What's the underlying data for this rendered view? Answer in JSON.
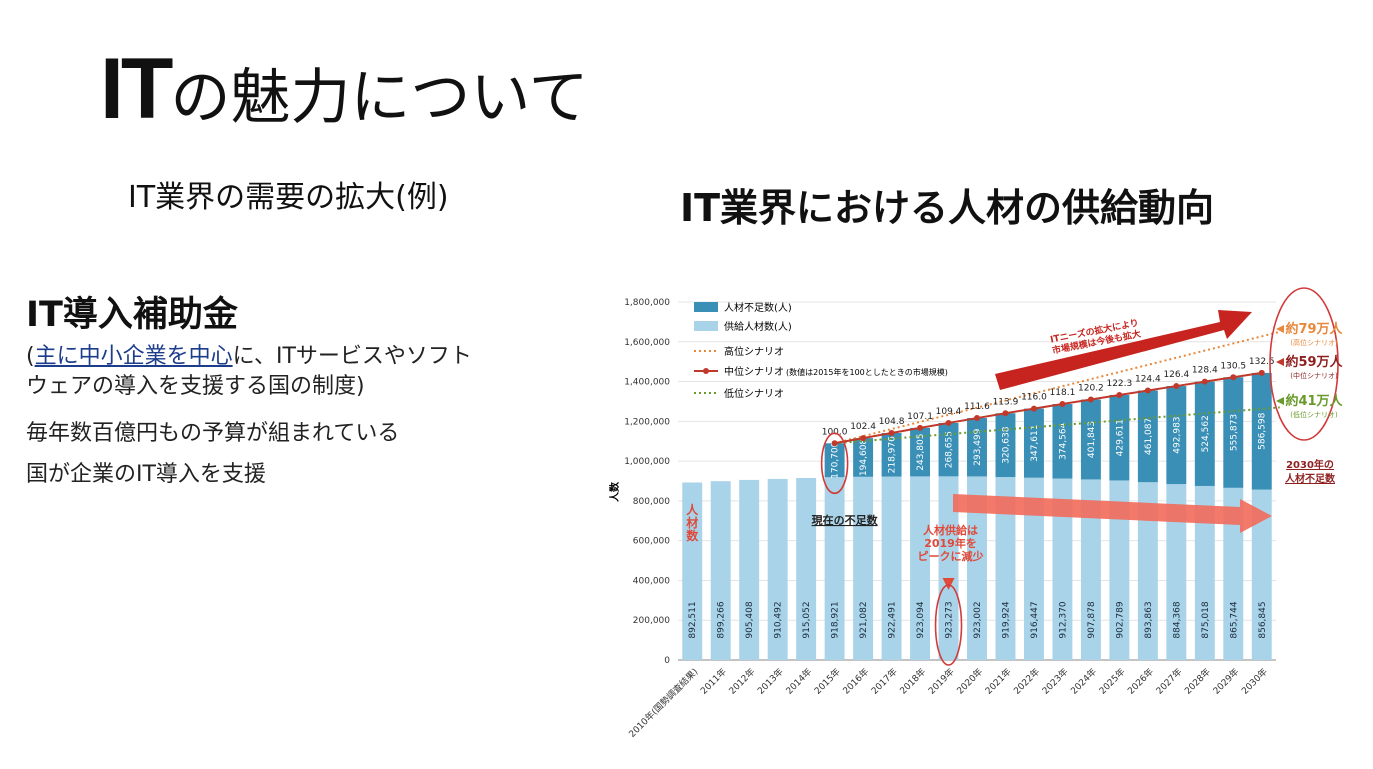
{
  "page": {
    "title_it": "IT",
    "title_rest": "の魅力について",
    "subtitle": "IT業界の需要の拡大(例)",
    "chart_heading": "IT業界における人材の供給動向"
  },
  "subsidy": {
    "title": "IT導入補助金",
    "desc_open": "(",
    "desc_link": "主に中小企業を中心",
    "desc_rest_1": "に、ITサービスやソフト",
    "desc_rest_2": "ウェアの導入を支援する国の制度)",
    "line1": "毎年数百億円もの予算が組まれている",
    "line2": "国が企業のIT導入を支援"
  },
  "chart_data": {
    "type": "bar",
    "stacked": true,
    "ylabel": "人数",
    "ylim": [
      0,
      1800000
    ],
    "yticks": [
      0,
      200000,
      400000,
      600000,
      800000,
      1000000,
      1200000,
      1400000,
      1600000,
      1800000
    ],
    "ytick_labels": [
      "0",
      "200,000",
      "400,000",
      "600,000",
      "800,000",
      "1,000,000",
      "1,200,000",
      "1,400,000",
      "1,600,000",
      "1,800,000"
    ],
    "categories": [
      "2010年(国勢調査結果)",
      "2011年",
      "2012年",
      "2013年",
      "2014年",
      "2015年",
      "2016年",
      "2017年",
      "2018年",
      "2019年",
      "2020年",
      "2021年",
      "2022年",
      "2023年",
      "2024年",
      "2025年",
      "2026年",
      "2027年",
      "2028年",
      "2029年",
      "2030年"
    ],
    "series": [
      {
        "name": "供給人材数(人)",
        "color": "#a9d3e8",
        "values": [
          892511,
          899266,
          905408,
          910492,
          915052,
          918921,
          921082,
          922491,
          923094,
          923273,
          923002,
          919924,
          916447,
          912370,
          907878,
          902789,
          893863,
          884368,
          875018,
          865744,
          856845
        ],
        "labels": [
          "892,511",
          "899,266",
          "905,408",
          "910,492",
          "915,052",
          "918,921",
          "921,082",
          "922,491",
          "923,094",
          "923,273",
          "923,002",
          "919,924",
          "916,447",
          "912,370",
          "907,878",
          "902,789",
          "893,863",
          "884,368",
          "875,018",
          "865,744",
          "856,845"
        ]
      },
      {
        "name": "人材不足数(人)",
        "color": "#3a8fb7",
        "values": [
          null,
          null,
          null,
          null,
          null,
          170700,
          194608,
          218976,
          243805,
          268655,
          293499,
          320638,
          347611,
          374564,
          401843,
          429611,
          461087,
          492983,
          524562,
          555873,
          586598
        ],
        "labels": [
          "",
          "",
          "",
          "",
          "",
          "170,700",
          "194,608",
          "218,976",
          "243,805",
          "268,655",
          "293,499",
          "320,638",
          "347,611",
          "374,564",
          "401,843",
          "429,611",
          "461,087",
          "492,983",
          "524,562",
          "555,873",
          "586,598"
        ]
      }
    ],
    "scenario_mid": {
      "name": "中位シナリオ",
      "color": "#c0392b",
      "index_values": [
        100.0,
        102.4,
        104.8,
        107.1,
        109.4,
        111.6,
        113.9,
        116.0,
        118.1,
        120.2,
        122.3,
        124.4,
        126.4,
        128.4,
        130.5,
        132.5
      ],
      "index_labels": [
        "100.0",
        "102.4",
        "104.8",
        "107.1",
        "109.4",
        "111.6",
        "113.9",
        "116.0",
        "118.1",
        "120.2",
        "122.3",
        "124.4",
        "126.4",
        "128.4",
        "130.5",
        "132.5"
      ],
      "start_index": 5
    },
    "scenario_high": {
      "name": "高位シナリオ",
      "color": "#e8883a",
      "end_total": 1650000
    },
    "scenario_low": {
      "name": "低位シナリオ",
      "color": "#6a9a2a",
      "end_total": 1270000
    },
    "legend": {
      "shortage": "人材不足数(人)",
      "supply": "供給人材数(人)",
      "high": "高位シナリオ",
      "mid": "中位シナリオ",
      "mid_note": "(数値は2015年を100としたときの市場規模)",
      "low": "低位シナリオ"
    },
    "annotations": {
      "jinzaisu": [
        "人",
        "材",
        "数"
      ],
      "current_shortage": "現在の不足数",
      "supply_peak": [
        "人材供給は",
        "2019年を",
        "ピークに減少"
      ],
      "needs_expand": [
        "ITニーズの拡大により",
        "市場規模は今後も拡大"
      ],
      "high_label": "約79万人",
      "high_sub": "(高位シナリオ)",
      "mid_label": "約59万人",
      "mid_sub": "(中位シナリオ)",
      "low_label": "約41万人",
      "low_sub": "(低位シナリオ)",
      "shortage_2030": [
        "2030年の",
        "人材不足数"
      ]
    }
  }
}
